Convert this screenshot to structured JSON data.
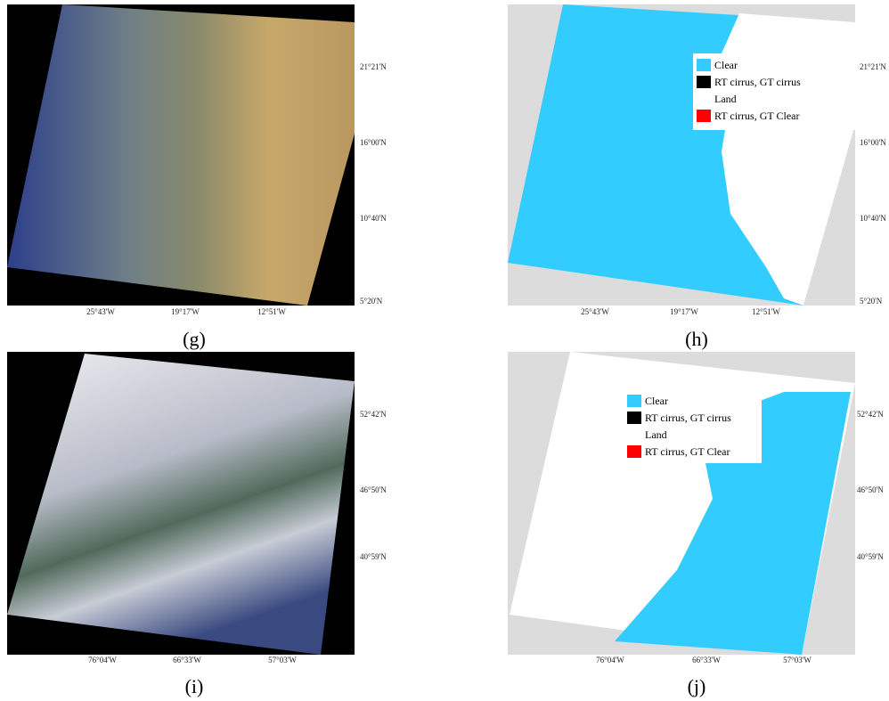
{
  "panels": [
    {
      "label": "(g)",
      "lat_labels": [
        "21°21'N",
        "16°00'N",
        "10°40'N",
        "5°20'N"
      ],
      "lon_labels": [
        "25°43'W",
        "19°17'W",
        "12°51'W"
      ]
    },
    {
      "label": "(h)",
      "lat_labels": [
        "21°21'N",
        "16°00'N",
        "10°40'N",
        "5°20'N"
      ],
      "lon_labels": [
        "25°43'W",
        "19°17'W",
        "12°51'W"
      ],
      "legend": [
        "Clear",
        "RT cirrus, GT cirrus",
        "Land",
        "RT cirrus, GT Clear"
      ]
    },
    {
      "label": "(i)",
      "lat_labels": [
        "52°42'N",
        "46°50'N",
        "40°59'N"
      ],
      "lon_labels": [
        "76°04'W",
        "66°33'W",
        "57°03'W"
      ]
    },
    {
      "label": "(j)",
      "lat_labels": [
        "52°42'N",
        "46°50'N",
        "40°59'N"
      ],
      "lon_labels": [
        "76°04'W",
        "66°33'W",
        "57°03'W"
      ],
      "legend": [
        "Clear",
        "RT cirrus, GT cirrus",
        "Land",
        "RT cirrus, GT Clear"
      ]
    }
  ]
}
